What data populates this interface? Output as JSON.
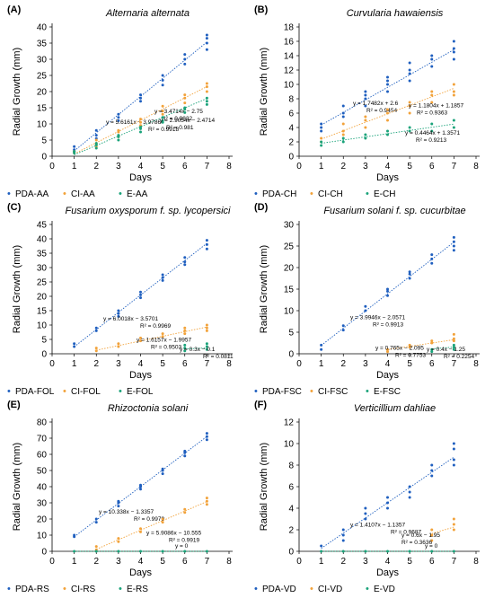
{
  "figure": {
    "legend_marker": "•"
  },
  "colors": {
    "PDA": "#1f5fbf",
    "CI": "#f2a23a",
    "E": "#1aa37a",
    "axis": "#000000",
    "grid": "#d9d9d9"
  },
  "chart_data": [
    {
      "panel": "(A)",
      "type": "scatter",
      "title": "Alternaria alternata",
      "xlabel": "Days",
      "ylabel": "Radial Growth (mm)",
      "xlim": [
        0,
        8
      ],
      "ylim": [
        0,
        40
      ],
      "xticks": [
        "0",
        "1",
        "2",
        "3",
        "4",
        "5",
        "6",
        "7",
        "8"
      ],
      "yticks": [
        "0",
        "5",
        "10",
        "15",
        "20",
        "25",
        "30",
        "35",
        "40"
      ],
      "series": [
        {
          "name": "PDA-AA",
          "color": "#1f5fbf",
          "x": [
            1,
            1,
            1,
            2,
            2,
            2,
            3,
            3,
            3,
            4,
            4,
            4,
            5,
            5,
            5,
            6,
            6,
            6,
            7,
            7,
            7,
            7
          ],
          "y": [
            1.5,
            2,
            3,
            5.5,
            6.5,
            8,
            11,
            12,
            13,
            17,
            18,
            19,
            22,
            23.5,
            25,
            28.5,
            30,
            31.5,
            33,
            35,
            36.5,
            37.5
          ],
          "trend": {
            "eq": "y = 5.6161x − 3.9786",
            "r2": "R² = 0.9918",
            "m": 5.6161,
            "b": -3.9786,
            "x0": 1,
            "x1": 7
          }
        },
        {
          "name": "CI-AA",
          "color": "#f2a23a",
          "x": [
            1,
            1,
            2,
            2,
            2,
            3,
            3,
            3,
            4,
            4,
            4,
            5,
            5,
            5,
            6,
            6,
            6,
            7,
            7,
            7
          ],
          "y": [
            1,
            1.5,
            3,
            4,
            5,
            6,
            7.5,
            8,
            9.5,
            10.5,
            11.5,
            13,
            14,
            15.5,
            16.5,
            18,
            19,
            20,
            21.5,
            22.5
          ],
          "trend": {
            "eq": "y = 3.4714x − 2.75",
            "r2": "R² = 0.9832",
            "m": 3.4714,
            "b": -2.75,
            "x0": 1,
            "x1": 7
          }
        },
        {
          "name": "E-AA",
          "color": "#1aa37a",
          "x": [
            1,
            1,
            2,
            2,
            2,
            3,
            3,
            3,
            4,
            4,
            4,
            5,
            5,
            5,
            6,
            6,
            6,
            7,
            7,
            7
          ],
          "y": [
            1,
            1.5,
            2.5,
            3.5,
            4,
            5,
            6,
            6.5,
            7.5,
            8.5,
            9,
            10.5,
            11,
            12,
            13.5,
            14.5,
            15,
            16,
            17,
            18
          ],
          "trend": {
            "eq": "y = 2.9054x − 2.4714",
            "r2": "R² = 0.981",
            "m": 2.9054,
            "b": -2.4714,
            "x0": 1,
            "x1": 7
          }
        }
      ]
    },
    {
      "panel": "(B)",
      "type": "scatter",
      "title": "Curvularia hawaiensis",
      "xlabel": "Days",
      "ylabel": "Radial Growth (mm)",
      "xlim": [
        0,
        8
      ],
      "ylim": [
        0,
        18
      ],
      "xticks": [
        "0",
        "1",
        "2",
        "3",
        "4",
        "5",
        "6",
        "7",
        "8"
      ],
      "yticks": [
        "0",
        "2",
        "4",
        "6",
        "8",
        "10",
        "12",
        "14",
        "16",
        "18"
      ],
      "series": [
        {
          "name": "PDA-CH",
          "color": "#1f5fbf",
          "x": [
            1,
            1,
            1,
            2,
            2,
            2,
            3,
            3,
            3,
            3,
            4,
            4,
            4,
            4,
            5,
            5,
            5,
            5,
            6,
            6,
            6,
            7,
            7,
            7,
            7
          ],
          "y": [
            3.5,
            4,
            4.5,
            5.5,
            6,
            7,
            7,
            8,
            8.5,
            9,
            9,
            10,
            10.5,
            11,
            10.5,
            11.5,
            12,
            13,
            12.5,
            13.5,
            14,
            13.5,
            14.5,
            15,
            16
          ],
          "trend": {
            "eq": "y = 1.7482x + 2.6",
            "r2": "R² = 0.9454",
            "m": 1.7482,
            "b": 2.6,
            "x0": 1,
            "x1": 7
          }
        },
        {
          "name": "CI-CH",
          "color": "#f2a23a",
          "x": [
            1,
            1,
            2,
            2,
            2,
            3,
            3,
            3,
            4,
            4,
            4,
            5,
            5,
            5,
            6,
            6,
            6,
            7,
            7,
            7
          ],
          "y": [
            2,
            2.5,
            3,
            3.5,
            4.5,
            4,
            5,
            5.5,
            5,
            6,
            6.5,
            6,
            7,
            7.5,
            7.5,
            8.5,
            9,
            8.5,
            9,
            10
          ],
          "trend": {
            "eq": "y = 1.1804x + 1.1857",
            "r2": "R² = 0.9363",
            "m": 1.1804,
            "b": 1.1857,
            "x0": 1,
            "x1": 7
          }
        },
        {
          "name": "E-CH",
          "color": "#1aa37a",
          "x": [
            1,
            1,
            2,
            2,
            3,
            3,
            4,
            4,
            5,
            5,
            6,
            6,
            7,
            7
          ],
          "y": [
            1.5,
            2,
            2,
            2.5,
            2.5,
            3,
            3,
            3.5,
            3.5,
            4,
            3.5,
            4.5,
            4,
            5
          ],
          "trend": {
            "eq": "y = 0.4464x + 1.3571",
            "r2": "R² = 0.9213",
            "m": 0.4464,
            "b": 1.3571,
            "x0": 1,
            "x1": 7
          }
        }
      ]
    },
    {
      "panel": "(C)",
      "type": "scatter",
      "title": "Fusarium oxysporum f. sp. lycopersici",
      "xlabel": "Days",
      "ylabel": "Radial Growth (mm)",
      "xlim": [
        0,
        8
      ],
      "ylim": [
        0,
        45
      ],
      "xticks": [
        "0",
        "1",
        "2",
        "3",
        "4",
        "5",
        "6",
        "7",
        "8"
      ],
      "yticks": [
        "0",
        "5",
        "10",
        "15",
        "20",
        "25",
        "30",
        "35",
        "40",
        "45"
      ],
      "series": [
        {
          "name": "PDA-FOL",
          "color": "#1f5fbf",
          "x": [
            1,
            1,
            2,
            2,
            3,
            3,
            3,
            4,
            4,
            4,
            5,
            5,
            5,
            6,
            6,
            6,
            7,
            7,
            7
          ],
          "y": [
            2.5,
            3.5,
            8,
            9,
            13,
            14,
            15,
            19.5,
            20.5,
            21.5,
            25.5,
            26.5,
            27.5,
            31,
            32,
            33.5,
            36.5,
            38,
            39.5
          ],
          "trend": {
            "eq": "y = 6.0018x − 3.5701",
            "r2": "R² = 0.9969",
            "m": 6.0018,
            "b": -3.5701,
            "x0": 1,
            "x1": 7
          }
        },
        {
          "name": "CI-FOL",
          "color": "#f2a23a",
          "x": [
            2,
            2,
            3,
            3,
            4,
            4,
            5,
            5,
            6,
            6,
            6,
            7,
            7,
            7
          ],
          "y": [
            1,
            2,
            2.5,
            3.5,
            4.5,
            5.5,
            6,
            7,
            7,
            8,
            9,
            8,
            9,
            10
          ],
          "trend": {
            "eq": "y = 1.6157x − 1.9957",
            "r2": "R² = 0.9503",
            "m": 1.6157,
            "b": -1.9957,
            "x0": 2,
            "x1": 7
          }
        },
        {
          "name": "E-FOL",
          "color": "#1aa37a",
          "x": [
            6,
            6,
            6,
            7,
            7,
            7
          ],
          "y": [
            1,
            2,
            3,
            1.5,
            2.5,
            3.5
          ],
          "trend": {
            "eq": "y = 0.3x − 0.1",
            "r2": "R² = 0.0811",
            "m": 0.3,
            "b": -0.1,
            "x0": 6,
            "x1": 7
          }
        }
      ]
    },
    {
      "panel": "(D)",
      "type": "scatter",
      "title": "Fusarium solani f. sp. cucurbitae",
      "xlabel": "Days",
      "ylabel": "Radial Growth (mm)",
      "xlim": [
        0,
        8
      ],
      "ylim": [
        0,
        30
      ],
      "xticks": [
        "0",
        "1",
        "2",
        "3",
        "4",
        "5",
        "6",
        "7",
        "8"
      ],
      "yticks": [
        "0",
        "5",
        "10",
        "15",
        "20",
        "25",
        "30"
      ],
      "series": [
        {
          "name": "PDA-FSC",
          "color": "#1f5fbf",
          "x": [
            1,
            1,
            2,
            2,
            3,
            3,
            4,
            4,
            4,
            5,
            5,
            5,
            6,
            6,
            6,
            7,
            7,
            7,
            7
          ],
          "y": [
            1,
            2,
            5.5,
            6.5,
            10,
            11,
            13.5,
            14.5,
            15,
            17.5,
            18.5,
            19,
            21,
            22,
            23,
            24,
            25,
            26,
            27
          ],
          "trend": {
            "eq": "y = 3.9946x − 2.0571",
            "r2": "R² = 0.9913",
            "m": 3.9946,
            "b": -2.0571,
            "x0": 1,
            "x1": 7
          }
        },
        {
          "name": "CI-FSC",
          "color": "#f2a23a",
          "x": [
            4,
            4,
            5,
            5,
            6,
            6,
            7,
            7,
            7
          ],
          "y": [
            0.5,
            1,
            1.5,
            2,
            2.5,
            3,
            3,
            3.5,
            4.5
          ],
          "trend": {
            "eq": "y = 0.765x − 2.095",
            "r2": "R² = 0.7753",
            "m": 0.765,
            "b": -2.095,
            "x0": 4,
            "x1": 7
          }
        },
        {
          "name": "E-FSC",
          "color": "#1aa37a",
          "x": [
            6,
            6,
            7,
            7,
            7
          ],
          "y": [
            0.5,
            1,
            1,
            1.5,
            2
          ],
          "trend": {
            "eq": "y = 0.4x − 1.25",
            "r2": "R² = 0.2254",
            "m": 0.4,
            "b": -1.25,
            "x0": 6,
            "x1": 7
          }
        }
      ]
    },
    {
      "panel": "(E)",
      "type": "scatter",
      "title": "Rhizoctonia solani",
      "xlabel": "Days",
      "ylabel": "Radial Growth (mm)",
      "xlim": [
        0,
        8
      ],
      "ylim": [
        0,
        80
      ],
      "xticks": [
        "0",
        "1",
        "2",
        "3",
        "4",
        "5",
        "6",
        "7",
        "8"
      ],
      "yticks": [
        "0",
        "10",
        "20",
        "30",
        "40",
        "50",
        "60",
        "70",
        "80"
      ],
      "series": [
        {
          "name": "PDA-RS",
          "color": "#1f5fbf",
          "x": [
            1,
            1,
            2,
            2,
            3,
            3,
            3,
            4,
            4,
            4,
            5,
            5,
            5,
            6,
            6,
            6,
            7,
            7,
            7
          ],
          "y": [
            9,
            10,
            18,
            20,
            28,
            30,
            31,
            38.5,
            40,
            41,
            48,
            50,
            51,
            59,
            61,
            62,
            69,
            71,
            73
          ],
          "trend": {
            "eq": "y = 10.338x − 1.3357",
            "r2": "R² = 0.9979",
            "m": 10.338,
            "b": -1.3357,
            "x0": 1,
            "x1": 7
          }
        },
        {
          "name": "CI-RS",
          "color": "#f2a23a",
          "x": [
            2,
            2,
            3,
            3,
            4,
            4,
            5,
            5,
            6,
            6,
            7,
            7,
            7
          ],
          "y": [
            1,
            3,
            6,
            8,
            12,
            14,
            18,
            20,
            24,
            26,
            29,
            31,
            33
          ],
          "trend": {
            "eq": "y = 5.9086x − 10.555",
            "r2": "R² = 0.9919",
            "m": 5.9086,
            "b": -10.555,
            "x0": 2,
            "x1": 7
          }
        },
        {
          "name": "E-RS",
          "color": "#1aa37a",
          "x": [
            1,
            2,
            3,
            4,
            5,
            6,
            7
          ],
          "y": [
            0,
            0,
            0,
            0,
            0,
            0,
            0
          ],
          "trend": {
            "eq": "y = 0",
            "r2": "",
            "m": 0,
            "b": 0,
            "x0": 1,
            "x1": 7
          }
        }
      ]
    },
    {
      "panel": "(F)",
      "type": "scatter",
      "title": "Verticillium dahliae",
      "xlabel": "Days",
      "ylabel": "Radial Growth (mm)",
      "xlim": [
        0,
        8
      ],
      "ylim": [
        0,
        12
      ],
      "xticks": [
        "0",
        "1",
        "2",
        "3",
        "4",
        "5",
        "6",
        "7",
        "8"
      ],
      "yticks": [
        "0",
        "2",
        "4",
        "6",
        "8",
        "10",
        "12"
      ],
      "series": [
        {
          "name": "PDA-VD",
          "color": "#1f5fbf",
          "x": [
            1,
            2,
            2,
            2,
            3,
            3,
            3,
            4,
            4,
            4,
            5,
            5,
            5,
            6,
            6,
            6,
            7,
            7,
            7,
            7
          ],
          "y": [
            0.5,
            1,
            1.5,
            2,
            3,
            3.5,
            4,
            4,
            4.5,
            5,
            5,
            5.5,
            6,
            7,
            7.5,
            8,
            8,
            8.5,
            9.5,
            10
          ],
          "trend": {
            "eq": "y = 1.4107x − 1.1357",
            "r2": "R² = 0.9687",
            "m": 1.4107,
            "b": -1.1357,
            "x0": 1,
            "x1": 7
          }
        },
        {
          "name": "CI-VD",
          "color": "#f2a23a",
          "x": [
            6,
            6,
            6,
            7,
            7,
            7
          ],
          "y": [
            1,
            1.5,
            2,
            2,
            2.5,
            3
          ],
          "trend": {
            "eq": "y = 0.6x − 1.95",
            "r2": "R² = 0.3636",
            "m": 0.6,
            "b": -1.95,
            "x0": 6,
            "x1": 7
          }
        },
        {
          "name": "E-VD",
          "color": "#1aa37a",
          "x": [
            1,
            2,
            3,
            4,
            5,
            6,
            7
          ],
          "y": [
            0,
            0,
            0,
            0,
            0,
            0,
            0
          ],
          "trend": {
            "eq": "y = 0",
            "r2": "",
            "m": 0,
            "b": 0,
            "x0": 1,
            "x1": 7
          }
        }
      ]
    }
  ]
}
